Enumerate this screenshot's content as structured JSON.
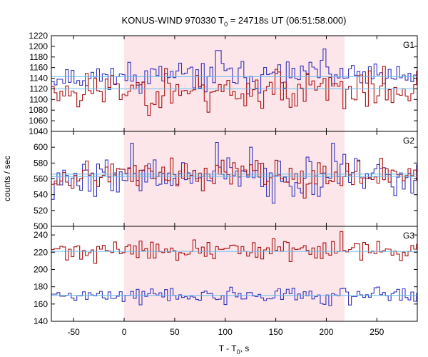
{
  "chart_data": {
    "type": "line",
    "title_main": "KONUS-WIND 970330 T",
    "title_sub": "0",
    "title_rest": " = 24718s UT (06:51:58.000)",
    "xlabel_main": "T - T",
    "xlabel_sub": "0",
    "xlabel_rest": ", s",
    "ylabel": "counts / sec",
    "xlim": [
      -72,
      290
    ],
    "xticks": [
      "-50",
      "0",
      "50",
      "100",
      "150",
      "200",
      "250"
    ],
    "highlight": {
      "x0": 0,
      "x1": 218,
      "color": "#fde6ea"
    },
    "colors": {
      "blue": "#3333bb",
      "red": "#aa1111",
      "fit": "#66bbee"
    },
    "panels": [
      {
        "label": "G1",
        "ylim": [
          1040,
          1220
        ],
        "yticks": [
          "1040",
          "1060",
          "1080",
          "1100",
          "1120",
          "1140",
          "1160",
          "1180",
          "1200",
          "1220"
        ],
        "series": [
          {
            "color": "blue",
            "mean": 1143,
            "sd": 14,
            "seed": 11,
            "bumps": [
              [
                92,
                1192
              ],
              [
                196,
                1195
              ],
              [
                183,
                1170
              ]
            ]
          },
          {
            "color": "red",
            "mean": 1118,
            "sd": 20,
            "seed": 23,
            "bumps": []
          }
        ],
        "fits": [
          1143,
          1120
        ]
      },
      {
        "label": "G2",
        "ylim": [
          500,
          620
        ],
        "yticks": [
          "500",
          "520",
          "540",
          "560",
          "580",
          "600"
        ],
        "series": [
          {
            "color": "blue",
            "mean": 562,
            "sd": 13,
            "seed": 37,
            "bumps": [
              [
                7,
                605
              ],
              [
                90,
                606
              ],
              [
                125,
                600
              ],
              [
                206,
                605
              ]
            ]
          },
          {
            "color": "red",
            "mean": 566,
            "sd": 10,
            "seed": 53,
            "bumps": []
          }
        ],
        "fits": [
          563,
          566
        ]
      },
      {
        "label": "G3",
        "ylim": [
          140,
          250
        ],
        "yticks": [
          "140",
          "160",
          "180",
          "200",
          "220",
          "240"
        ],
        "series": [
          {
            "color": "red",
            "mean": 222,
            "sd": 6,
            "seed": 71,
            "bumps": [
              [
                213,
                244
              ]
            ]
          },
          {
            "color": "blue",
            "mean": 170,
            "sd": 5,
            "seed": 89,
            "bumps": []
          }
        ],
        "fits": [
          221,
          170
        ]
      }
    ]
  }
}
